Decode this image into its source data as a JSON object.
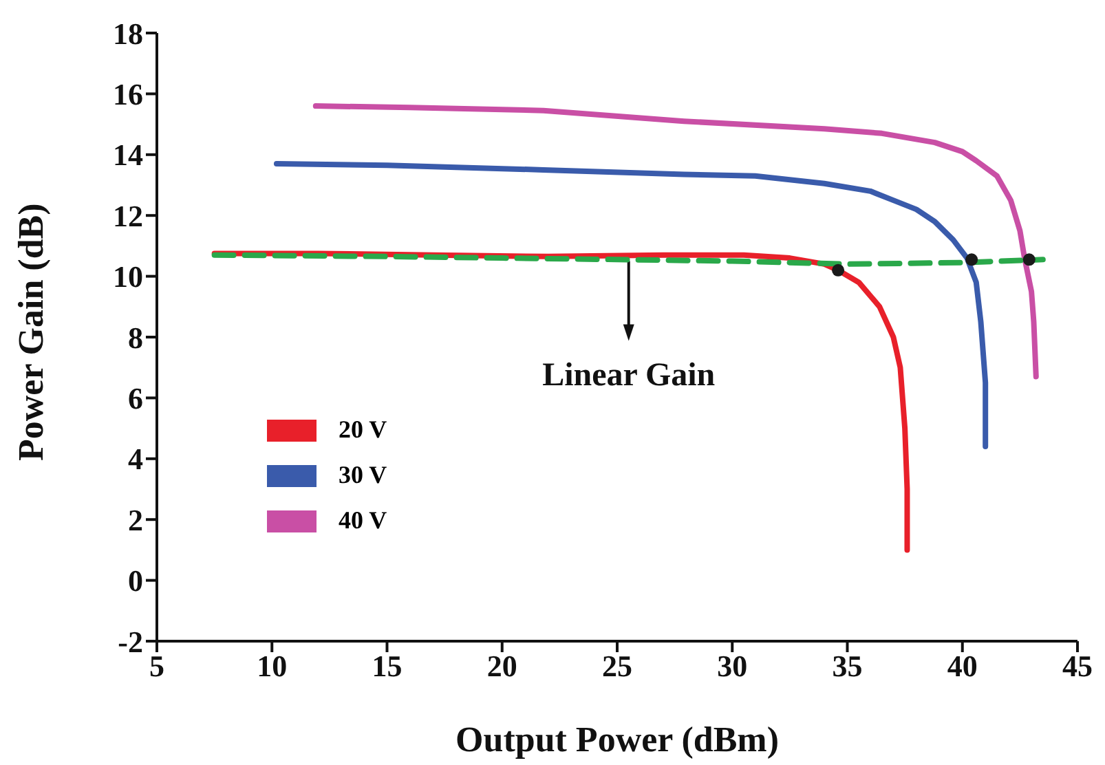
{
  "chart_data": {
    "type": "line",
    "xlabel": "Output Power (dBm)",
    "ylabel": "Power Gain (dB)",
    "xlim": [
      5,
      45
    ],
    "xticks": [
      5,
      10,
      15,
      20,
      25,
      30,
      35,
      40,
      45
    ],
    "ylim": [
      -2,
      18
    ],
    "yticks": [
      -2,
      0,
      2,
      4,
      6,
      8,
      10,
      12,
      14,
      16,
      18
    ],
    "legend": "bottom left",
    "marker": "none",
    "line_style": "solid",
    "annotations": [
      {
        "text": "Linear Gain",
        "x": 25.5,
        "y": 10.5
      }
    ],
    "series": [
      {
        "name": "20 V",
        "color": "#e8202a",
        "x": [
          7.5,
          12,
          17,
          22,
          27,
          30.5,
          32.5,
          34,
          34.6,
          35.5,
          36.4,
          37,
          37.3,
          37.5,
          37.6,
          37.6
        ],
        "values": [
          10.75,
          10.75,
          10.7,
          10.65,
          10.7,
          10.7,
          10.6,
          10.4,
          10.2,
          9.8,
          9,
          8,
          7,
          5,
          3,
          1
        ]
      },
      {
        "name": "30 V",
        "color": "#3a5bab",
        "x": [
          10.2,
          15,
          21.8,
          27.9,
          31,
          34,
          36,
          37,
          38,
          38.8,
          39.6,
          40.2,
          40.6,
          40.8,
          41,
          41
        ],
        "values": [
          13.7,
          13.65,
          13.5,
          13.35,
          13.3,
          13.05,
          12.8,
          12.5,
          12.2,
          11.8,
          11.2,
          10.6,
          9.8,
          8.5,
          6.5,
          4.4
        ]
      },
      {
        "name": "40 V",
        "color": "#c94fa5",
        "x": [
          11.9,
          16,
          21.8,
          27.9,
          34,
          36.5,
          38.8,
          40,
          40.6,
          41.5,
          42.1,
          42.5,
          42.7,
          43,
          43.1,
          43.2
        ],
        "values": [
          15.6,
          15.55,
          15.45,
          15.1,
          14.85,
          14.7,
          14.4,
          14.1,
          13.8,
          13.3,
          12.5,
          11.5,
          10.6,
          9.5,
          8.5,
          6.7
        ]
      },
      {
        "type": "line",
        "color": "#2aa84a",
        "line_style": "dashed",
        "x": [
          7.5,
          15,
          20,
          25,
          30,
          35,
          40,
          43.5
        ],
        "values": [
          10.7,
          10.65,
          10.6,
          10.55,
          10.5,
          10.4,
          10.45,
          10.55
        ]
      },
      {
        "type": "scatter",
        "color": "#1a1a1a",
        "marker": "circle",
        "x": [
          34.6,
          40.4,
          42.9
        ],
        "values": [
          10.2,
          10.55,
          10.55
        ]
      }
    ]
  }
}
